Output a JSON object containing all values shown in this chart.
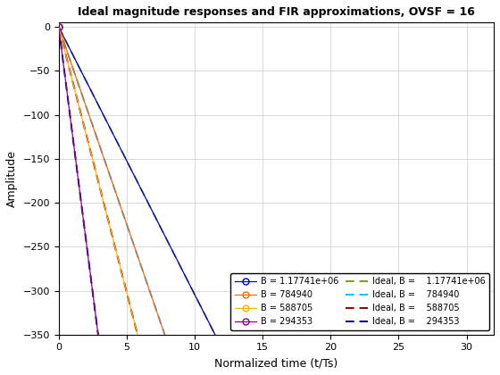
{
  "title": "Ideal magnitude responses and FIR approximations, OVSF = 16",
  "xlabel": "Normalized time (t/Ts)",
  "ylabel": "Amplitude",
  "xlim": [
    0,
    32
  ],
  "ylim": [
    -350,
    5
  ],
  "yticks": [
    0,
    -50,
    -100,
    -150,
    -200,
    -250,
    -300,
    -350
  ],
  "xticks": [
    0,
    5,
    10,
    15,
    20,
    25,
    30
  ],
  "B_labels": [
    "1.17741e+06",
    "784940",
    "588705",
    "294353"
  ],
  "fir_colors": [
    "#0000CD",
    "#FF6600",
    "#FFB300",
    "#8B008B"
  ],
  "ideal_colors": [
    "#7B9E1A",
    "#00BFFF",
    "#990000",
    "#000080"
  ],
  "x_max_ideal": [
    11.5,
    7.8,
    5.8,
    2.9
  ],
  "x_max_fir": [
    11.5,
    7.8,
    5.8,
    2.9
  ],
  "y_bottom": -350,
  "figsize": [
    5.6,
    4.2
  ],
  "dpi": 100
}
